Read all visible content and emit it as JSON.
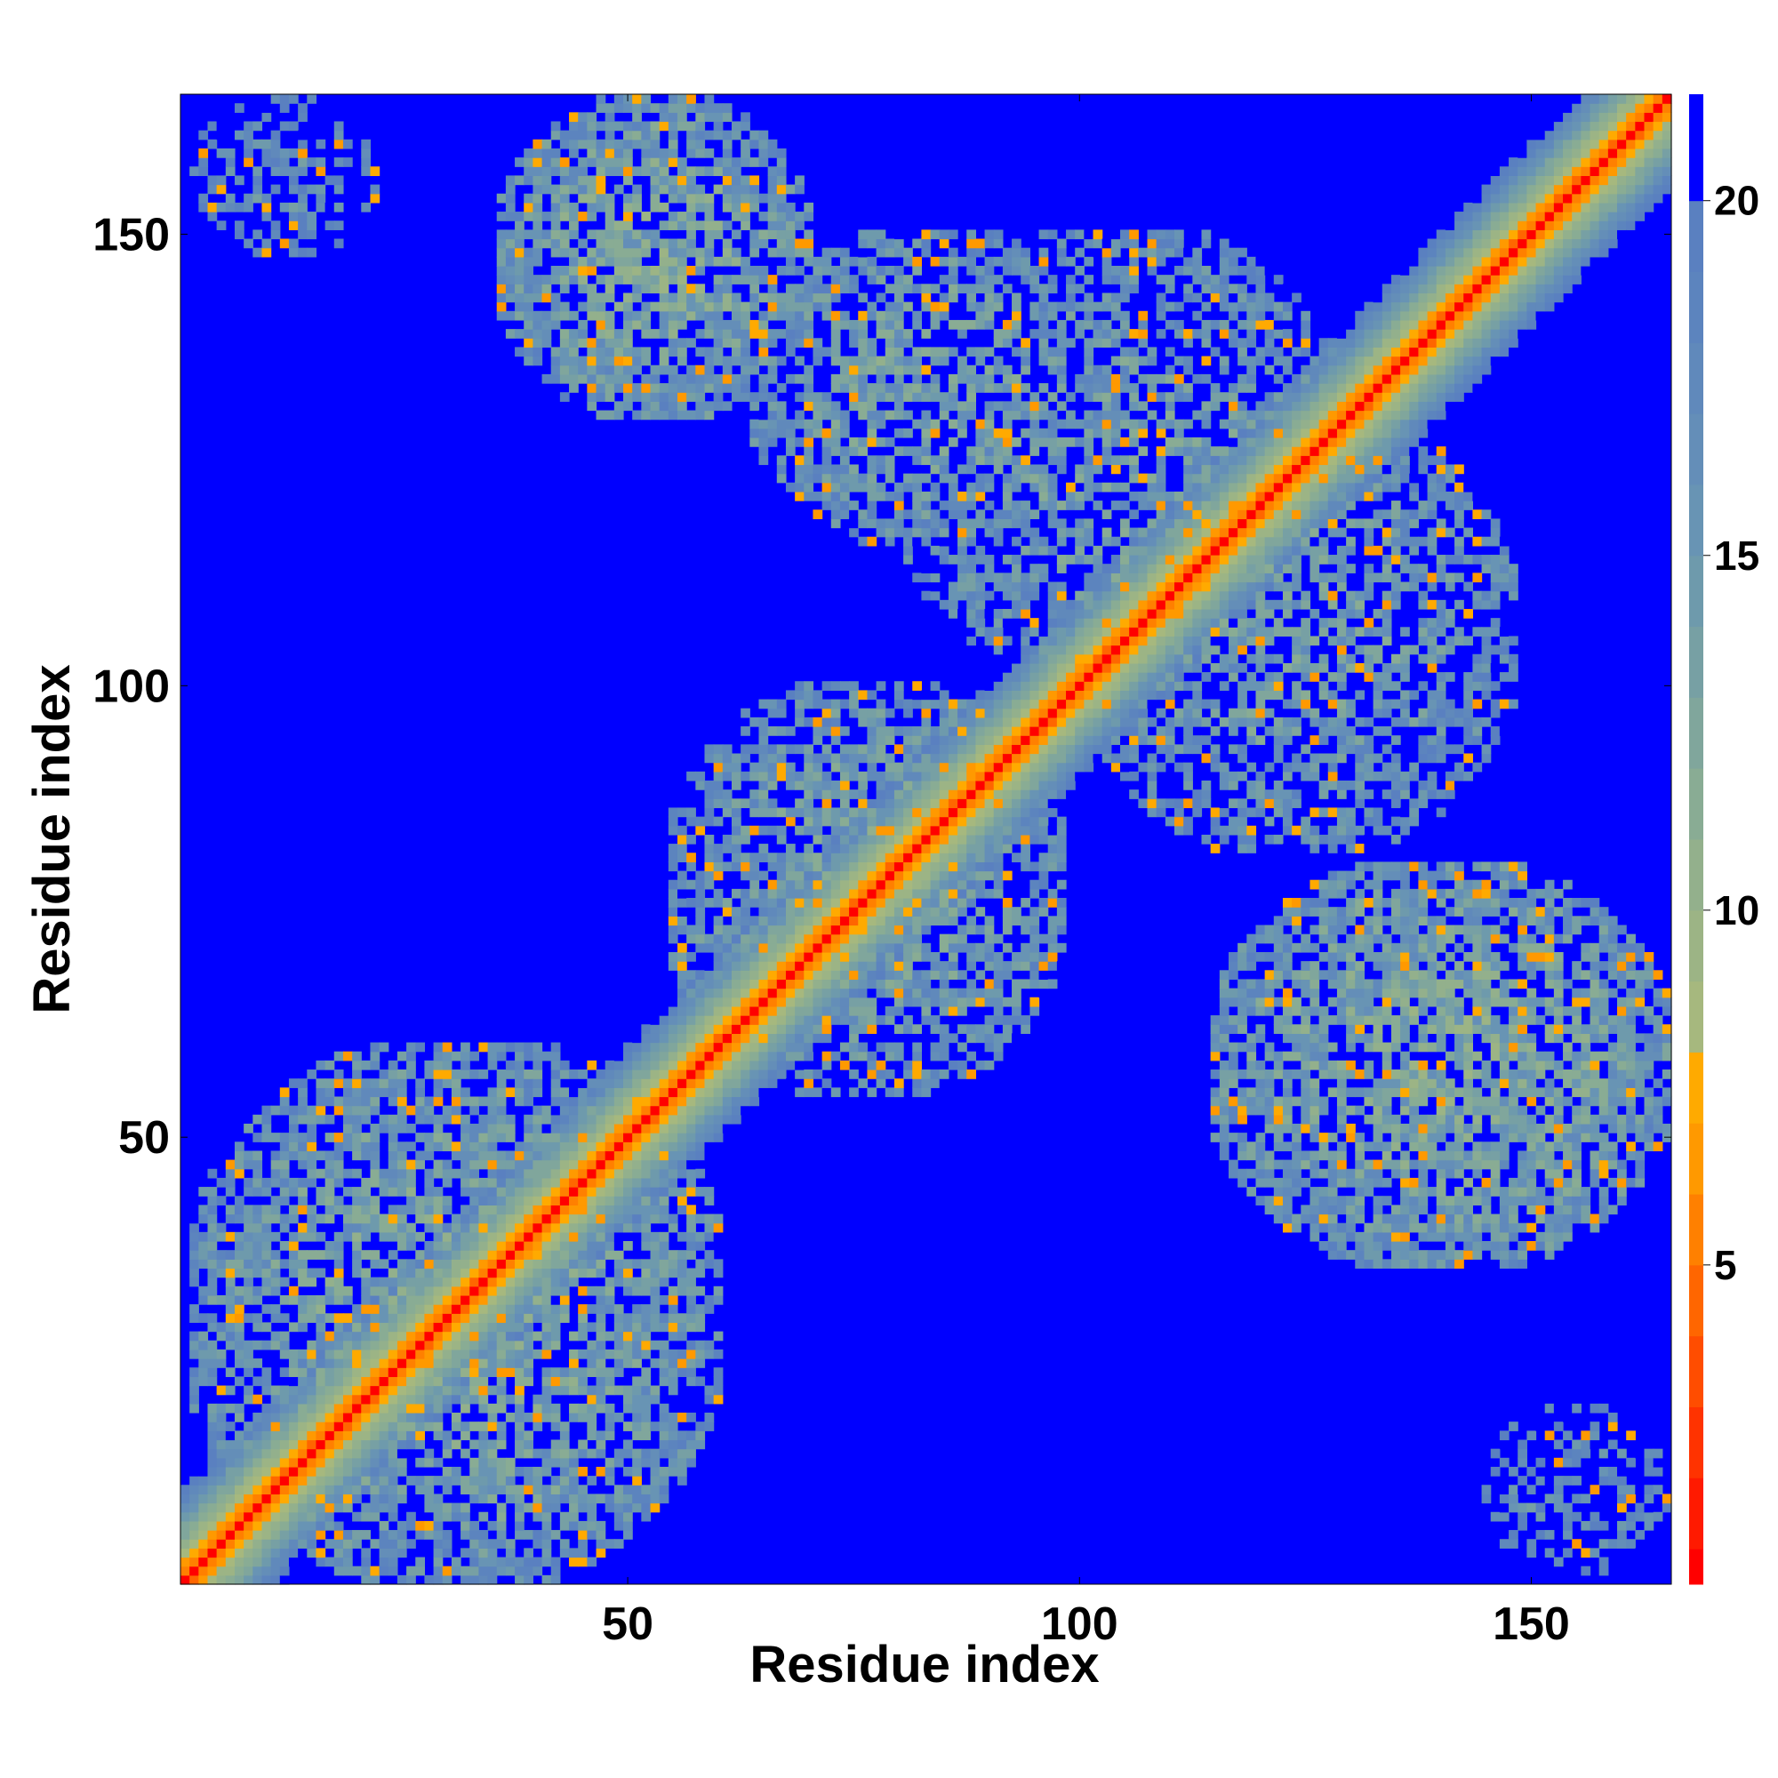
{
  "chart_data": {
    "type": "heatmap",
    "title": "",
    "xlabel": "Residue index",
    "ylabel": "Residue index",
    "x_range": [
      1,
      165
    ],
    "y_range": [
      1,
      165
    ],
    "x_ticks": [
      50,
      100,
      150
    ],
    "y_ticks": [
      50,
      100,
      150
    ],
    "x_tick_labels": [
      "50",
      "100",
      "150"
    ],
    "y_tick_labels": [
      "50",
      "100",
      "150"
    ],
    "colorbar": {
      "range": [
        0.5,
        21.5
      ],
      "ticks": [
        5,
        10,
        15,
        20
      ],
      "tick_labels": [
        "5",
        "10",
        "15",
        "20"
      ],
      "levels": [
        {
          "upper": 1.0,
          "color": "#ff0000"
        },
        {
          "upper": 2.0,
          "color": "#ff1a00"
        },
        {
          "upper": 3.0,
          "color": "#ff3300"
        },
        {
          "upper": 4.0,
          "color": "#ff4d00"
        },
        {
          "upper": 5.0,
          "color": "#ff6600"
        },
        {
          "upper": 6.0,
          "color": "#ff8000"
        },
        {
          "upper": 7.0,
          "color": "#ff9900"
        },
        {
          "upper": 8.0,
          "color": "#ffaa00"
        },
        {
          "upper": 9.0,
          "color": "#a6b87e"
        },
        {
          "upper": 10.0,
          "color": "#9cb485"
        },
        {
          "upper": 11.0,
          "color": "#93b08c"
        },
        {
          "upper": 12.0,
          "color": "#89ac94"
        },
        {
          "upper": 13.0,
          "color": "#80a69c"
        },
        {
          "upper": 14.0,
          "color": "#77a0a4"
        },
        {
          "upper": 15.0,
          "color": "#6e9aac"
        },
        {
          "upper": 16.0,
          "color": "#6894b4"
        },
        {
          "upper": 17.0,
          "color": "#648eb8"
        },
        {
          "upper": 18.0,
          "color": "#6089bb"
        },
        {
          "upper": 19.0,
          "color": "#5c84be"
        },
        {
          "upper": 20.0,
          "color": "#5a80c0"
        },
        {
          "upper": 21.5,
          "color": "#0000ff"
        }
      ]
    },
    "diagonal": {
      "core_distance": 3.8,
      "falloff_per_residue": 1.6
    },
    "contact_regions": [
      {
        "x": [
          2,
          22
        ],
        "y": [
          148,
          165
        ],
        "value": 16.5,
        "density": 0.55
      },
      {
        "x": [
          36,
          70
        ],
        "y": [
          130,
          165
        ],
        "value": 13.0,
        "density": 0.75
      },
      {
        "x": [
          64,
          103
        ],
        "y": [
          116,
          150
        ],
        "value": 14.0,
        "density": 0.65
      },
      {
        "x": [
          80,
          130
        ],
        "y": [
          100,
          150
        ],
        "value": 14.5,
        "density": 0.6
      },
      {
        "x": [
          100,
          148
        ],
        "y": [
          82,
          130
        ],
        "value": 14.5,
        "density": 0.6
      },
      {
        "x": [
          55,
          98
        ],
        "y": [
          55,
          100
        ],
        "value": 14.0,
        "density": 0.65
      },
      {
        "x": [
          2,
          60
        ],
        "y": [
          1,
          60
        ],
        "value": 13.5,
        "density": 0.7
      },
      {
        "x": [
          115,
          165
        ],
        "y": [
          36,
          80
        ],
        "value": 13.0,
        "density": 0.75
      },
      {
        "x": [
          145,
          165
        ],
        "y": [
          2,
          20
        ],
        "value": 16.5,
        "density": 0.55
      }
    ]
  }
}
